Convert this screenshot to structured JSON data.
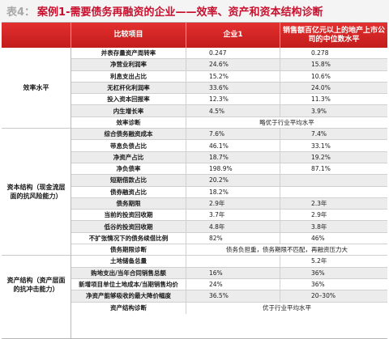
{
  "title": {
    "tag": "表4：",
    "text": "案例1-需要债务再融资的企业——效率、资产和资本结构诊断"
  },
  "header": {
    "col_item": "比较项目",
    "col_company": "企业1",
    "col_benchmark": "销售额百亿元以上的地产上市公司的中位数水平"
  },
  "groups": [
    {
      "label": "效率水平"
    },
    {
      "label": "资本结构（现金流层面的抗风险能力）"
    },
    {
      "label": "资产结构（资产层面的抗冲击能力）"
    }
  ],
  "rows": [
    {
      "item": "并表存量资产周转率",
      "v1": "0.247",
      "v2": "0.278"
    },
    {
      "item": "净营业利润率",
      "v1": "24.6%",
      "v2": "15.8%"
    },
    {
      "item": "利息支出占比",
      "v1": "15.2%",
      "v2": "10.6%"
    },
    {
      "item": "无杠杆化利润率",
      "v1": "33.6%",
      "v2": "24.0%"
    },
    {
      "item": "投入资本回报率",
      "v1": "12.3%",
      "v2": "11.3%"
    },
    {
      "item": "内生增长率",
      "v1": "4.5%",
      "v2": "3.9%"
    },
    {
      "item": "效率诊断",
      "merged": "略优于行业平均水平"
    },
    {
      "item": "综合债务融资成本",
      "v1": "7.6%",
      "v2": "7.4%"
    },
    {
      "item": "带息负债占比",
      "v1": "46.1%",
      "v2": "33.1%"
    },
    {
      "item": "净资产占比",
      "v1": "18.7%",
      "v2": "19.2%"
    },
    {
      "item": "净负债率",
      "v1": "198.9%",
      "v2": "87.1%"
    },
    {
      "item": "短期借款占比",
      "v1": "20.2%",
      "v2": ""
    },
    {
      "item": "债券融资占比",
      "v1": "18.2%",
      "v2": ""
    },
    {
      "item": "债务期限",
      "v1": "2.9年",
      "v2": "2.3年"
    },
    {
      "item": "当前的投资回收期",
      "v1": "3.7年",
      "v2": "2.9年"
    },
    {
      "item": "低谷的投资回收期",
      "v1": "4.8年",
      "v2": "3.8年"
    },
    {
      "item": "不扩张情况下的债务续借比例",
      "v1": "82%",
      "v2": "46%"
    },
    {
      "item": "债务期限诊断",
      "merged": "债务负担重，债务期限不匹配，再融资压力大"
    },
    {
      "item": "土地储备总量",
      "v1": "",
      "v2": "5.2年"
    },
    {
      "item": "购地支出/当年合同销售总额",
      "v1": "16%",
      "v2": "36%"
    },
    {
      "item": "新增项目单位土地成本/当期销售均价",
      "v1": "24%",
      "v2": "36%"
    },
    {
      "item": "净资产能够吸收的最大降价幅度",
      "v1": "36.5%",
      "v2": "20–30%"
    },
    {
      "item": "资产结构诊断",
      "merged": "优于行业平均水平"
    }
  ]
}
